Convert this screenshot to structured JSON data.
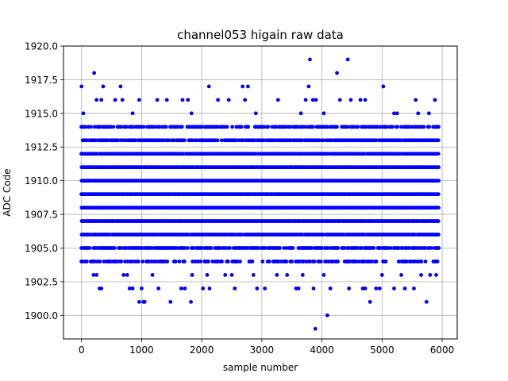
{
  "chart_data": {
    "type": "scatter",
    "title": "channel053 higain raw data",
    "xlabel": "sample number",
    "ylabel": "ADC Code",
    "xlim": [
      -300,
      6250
    ],
    "ylim": [
      1898.25,
      1920.0
    ],
    "x_ticks": [
      0,
      1000,
      2000,
      3000,
      4000,
      5000,
      6000
    ],
    "y_ticks": [
      1900.0,
      1902.5,
      1905.0,
      1907.5,
      1910.0,
      1912.5,
      1915.0,
      1917.5,
      1920.0
    ],
    "x_tick_labels": [
      "0",
      "1000",
      "2000",
      "3000",
      "4000",
      "5000",
      "6000"
    ],
    "y_tick_labels": [
      "1900.0",
      "1902.5",
      "1905.0",
      "1907.5",
      "1910.0",
      "1912.5",
      "1915.0",
      "1917.5",
      "1920.0"
    ],
    "grid": true,
    "marker_color": "#0000ff",
    "series": [
      {
        "x_range": [
          0,
          5940
        ],
        "dense_levels": [
          1904,
          1905,
          1906,
          1907,
          1908,
          1909,
          1910,
          1911,
          1912,
          1913,
          1914
        ],
        "sparse_points": [
          [
            0,
            1917
          ],
          [
            30,
            1915
          ],
          [
            210,
            1918
          ],
          [
            250,
            1916
          ],
          [
            330,
            1916
          ],
          [
            360,
            1917
          ],
          [
            560,
            1916
          ],
          [
            650,
            1917
          ],
          [
            680,
            1916
          ],
          [
            850,
            1915
          ],
          [
            960,
            1916
          ],
          [
            1260,
            1916
          ],
          [
            1420,
            1916
          ],
          [
            1680,
            1916
          ],
          [
            1770,
            1916
          ],
          [
            1830,
            1915
          ],
          [
            2120,
            1917
          ],
          [
            2270,
            1916
          ],
          [
            2450,
            1916
          ],
          [
            2680,
            1917
          ],
          [
            2720,
            1916
          ],
          [
            2770,
            1917
          ],
          [
            2900,
            1915
          ],
          [
            3270,
            1916
          ],
          [
            3650,
            1915
          ],
          [
            3730,
            1916
          ],
          [
            3780,
            1917
          ],
          [
            3800,
            1919
          ],
          [
            3850,
            1916
          ],
          [
            3900,
            1916
          ],
          [
            4030,
            1915
          ],
          [
            4250,
            1918
          ],
          [
            4300,
            1916
          ],
          [
            4430,
            1919
          ],
          [
            4480,
            1916
          ],
          [
            4640,
            1916
          ],
          [
            4720,
            1916
          ],
          [
            5020,
            1917
          ],
          [
            5200,
            1915
          ],
          [
            5250,
            1915
          ],
          [
            5560,
            1916
          ],
          [
            5600,
            1915
          ],
          [
            5780,
            1915
          ],
          [
            5880,
            1916
          ],
          [
            200,
            1903
          ],
          [
            250,
            1903
          ],
          [
            300,
            1902
          ],
          [
            330,
            1902
          ],
          [
            700,
            1903
          ],
          [
            760,
            1903
          ],
          [
            800,
            1902
          ],
          [
            850,
            1902
          ],
          [
            960,
            1901
          ],
          [
            1030,
            1901
          ],
          [
            1050,
            1901
          ],
          [
            1000,
            1902
          ],
          [
            1180,
            1903
          ],
          [
            1280,
            1902
          ],
          [
            1480,
            1901
          ],
          [
            1660,
            1902
          ],
          [
            1720,
            1902
          ],
          [
            1820,
            1901
          ],
          [
            1840,
            1903
          ],
          [
            2020,
            1902
          ],
          [
            2090,
            1903
          ],
          [
            2130,
            1902
          ],
          [
            2390,
            1903
          ],
          [
            2500,
            1903
          ],
          [
            2550,
            1902
          ],
          [
            2860,
            1903
          ],
          [
            2920,
            1902
          ],
          [
            3050,
            1902
          ],
          [
            3250,
            1903
          ],
          [
            3420,
            1903
          ],
          [
            3570,
            1902
          ],
          [
            3610,
            1902
          ],
          [
            3680,
            1903
          ],
          [
            3860,
            1902
          ],
          [
            3890,
            1899
          ],
          [
            4030,
            1903
          ],
          [
            4090,
            1900
          ],
          [
            4140,
            1902
          ],
          [
            4450,
            1902
          ],
          [
            4680,
            1902
          ],
          [
            4720,
            1902
          ],
          [
            4800,
            1901
          ],
          [
            4900,
            1902
          ],
          [
            4960,
            1902
          ],
          [
            5000,
            1903
          ],
          [
            5200,
            1902
          ],
          [
            5320,
            1903
          ],
          [
            5380,
            1902
          ],
          [
            5530,
            1902
          ],
          [
            5650,
            1903
          ],
          [
            5740,
            1901
          ],
          [
            5800,
            1903
          ],
          [
            5900,
            1903
          ]
        ]
      }
    ]
  }
}
